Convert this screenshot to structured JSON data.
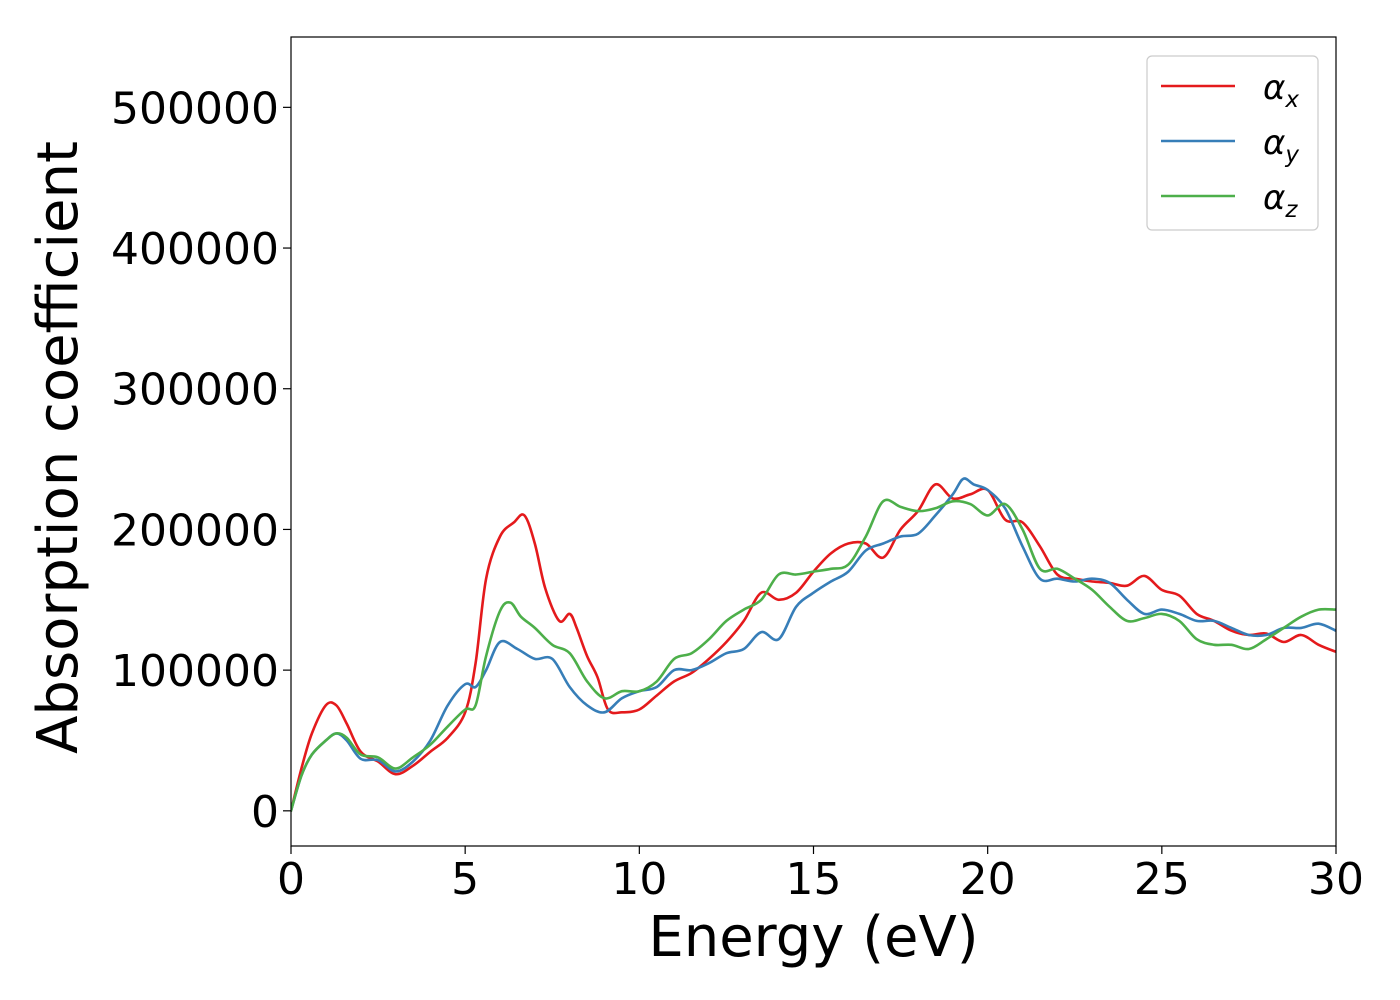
{
  "chart_data": {
    "type": "line",
    "title": "",
    "xlabel": "Energy (eV)",
    "ylabel": "Absorption coefficient",
    "xlim": [
      0,
      30
    ],
    "ylim": [
      -25000,
      550000
    ],
    "xticks": [
      0,
      5,
      10,
      15,
      20,
      25,
      30
    ],
    "xtick_labels": [
      "0",
      "5",
      "10",
      "15",
      "20",
      "25",
      "30"
    ],
    "yticks": [
      0,
      100000,
      200000,
      300000,
      400000,
      500000
    ],
    "ytick_labels": [
      "0",
      "100000",
      "200000",
      "300000",
      "400000",
      "500000"
    ],
    "grid": false,
    "legend_position": "top-right",
    "series": [
      {
        "name": "α",
        "name_subscript": "x",
        "color": "#e41a1c",
        "x": [
          0,
          0.3,
          0.6,
          1.0,
          1.3,
          1.6,
          2.0,
          2.5,
          3.0,
          3.5,
          4.0,
          4.5,
          5.0,
          5.3,
          5.6,
          6.0,
          6.4,
          6.7,
          7.0,
          7.3,
          7.7,
          8.0,
          8.2,
          8.5,
          8.8,
          9.1,
          9.5,
          10.0,
          10.5,
          11.0,
          11.5,
          12.0,
          12.5,
          13.0,
          13.5,
          14.0,
          14.5,
          15.0,
          15.5,
          16.0,
          16.5,
          17.0,
          17.5,
          18.0,
          18.5,
          19.0,
          19.5,
          20.0,
          20.5,
          21.0,
          21.5,
          22.0,
          22.5,
          23.0,
          23.5,
          24.0,
          24.5,
          25.0,
          25.5,
          26.0,
          26.5,
          27.0,
          27.5,
          28.0,
          28.5,
          29.0,
          29.5,
          30.0
        ],
        "y": [
          0,
          30000,
          55000,
          75000,
          75000,
          62000,
          42000,
          35000,
          26000,
          32000,
          42000,
          52000,
          70000,
          105000,
          165000,
          195000,
          205000,
          210000,
          190000,
          158000,
          135000,
          140000,
          130000,
          110000,
          95000,
          72000,
          70000,
          72000,
          82000,
          92000,
          98000,
          108000,
          120000,
          135000,
          155000,
          150000,
          155000,
          170000,
          183000,
          190000,
          190000,
          180000,
          200000,
          213000,
          232000,
          222000,
          225000,
          228000,
          207000,
          205000,
          188000,
          168000,
          165000,
          163000,
          162000,
          160000,
          167000,
          157000,
          153000,
          140000,
          135000,
          128000,
          125000,
          126000,
          120000,
          125000,
          118000,
          113000
        ]
      },
      {
        "name": "α",
        "name_subscript": "y",
        "color": "#377eb8",
        "x": [
          0,
          0.3,
          0.6,
          1.0,
          1.3,
          1.6,
          2.0,
          2.5,
          3.0,
          3.5,
          4.0,
          4.5,
          5.0,
          5.3,
          5.6,
          6.0,
          6.5,
          7.0,
          7.5,
          8.0,
          8.5,
          9.0,
          9.5,
          10.0,
          10.5,
          11.0,
          11.5,
          12.0,
          12.5,
          13.0,
          13.5,
          14.0,
          14.5,
          15.0,
          15.5,
          16.0,
          16.5,
          17.0,
          17.5,
          18.0,
          18.5,
          19.0,
          19.3,
          19.6,
          20.0,
          20.5,
          21.0,
          21.5,
          22.0,
          22.5,
          23.0,
          23.5,
          24.0,
          24.5,
          25.0,
          25.5,
          26.0,
          26.5,
          27.0,
          27.5,
          28.0,
          28.5,
          29.0,
          29.5,
          30.0
        ],
        "y": [
          0,
          25000,
          40000,
          50000,
          55000,
          50000,
          37000,
          36000,
          28000,
          35000,
          50000,
          75000,
          90000,
          88000,
          100000,
          120000,
          115000,
          108000,
          108000,
          88000,
          75000,
          70000,
          80000,
          85000,
          88000,
          100000,
          100000,
          105000,
          112000,
          115000,
          127000,
          122000,
          145000,
          155000,
          163000,
          170000,
          185000,
          190000,
          195000,
          197000,
          210000,
          225000,
          236000,
          232000,
          228000,
          215000,
          188000,
          165000,
          165000,
          163000,
          165000,
          162000,
          150000,
          140000,
          143000,
          140000,
          135000,
          135000,
          130000,
          125000,
          125000,
          130000,
          130000,
          133000,
          128000
        ]
      },
      {
        "name": "α",
        "name_subscript": "z",
        "color": "#4daf4a",
        "x": [
          0,
          0.3,
          0.6,
          1.0,
          1.3,
          1.6,
          2.0,
          2.5,
          3.0,
          3.5,
          4.0,
          4.5,
          5.0,
          5.3,
          5.6,
          6.0,
          6.3,
          6.6,
          7.0,
          7.5,
          8.0,
          8.5,
          9.0,
          9.5,
          10.0,
          10.5,
          11.0,
          11.5,
          12.0,
          12.5,
          13.0,
          13.5,
          14.0,
          14.5,
          15.0,
          15.5,
          16.0,
          16.5,
          17.0,
          17.5,
          18.0,
          18.5,
          19.0,
          19.5,
          20.0,
          20.5,
          21.0,
          21.5,
          22.0,
          22.5,
          23.0,
          23.5,
          24.0,
          24.5,
          25.0,
          25.5,
          26.0,
          26.5,
          27.0,
          27.5,
          28.0,
          28.5,
          29.0,
          29.5,
          30.0
        ],
        "y": [
          0,
          25000,
          40000,
          50000,
          55000,
          52000,
          40000,
          38000,
          30000,
          38000,
          47000,
          60000,
          72000,
          75000,
          110000,
          142000,
          148000,
          138000,
          130000,
          118000,
          112000,
          92000,
          80000,
          85000,
          85000,
          92000,
          108000,
          112000,
          122000,
          135000,
          143000,
          150000,
          168000,
          168000,
          170000,
          172000,
          175000,
          195000,
          220000,
          216000,
          213000,
          215000,
          220000,
          218000,
          210000,
          218000,
          200000,
          172000,
          172000,
          165000,
          157000,
          145000,
          135000,
          137000,
          140000,
          135000,
          122000,
          118000,
          118000,
          115000,
          122000,
          130000,
          138000,
          143000,
          143000
        ]
      }
    ]
  }
}
